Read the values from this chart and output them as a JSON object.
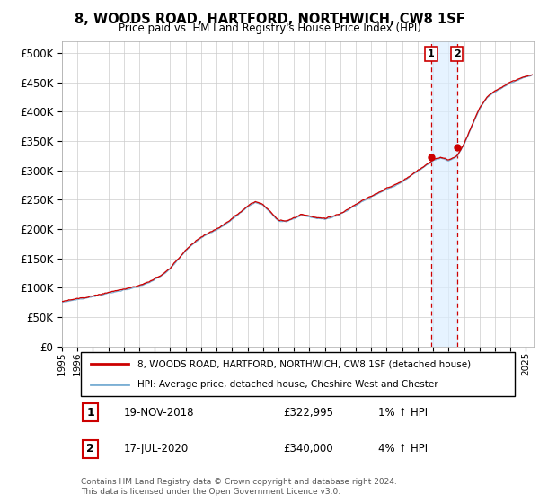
{
  "title": "8, WOODS ROAD, HARTFORD, NORTHWICH, CW8 1SF",
  "subtitle": "Price paid vs. HM Land Registry's House Price Index (HPI)",
  "ylabel_ticks": [
    "£0",
    "£50K",
    "£100K",
    "£150K",
    "£200K",
    "£250K",
    "£300K",
    "£350K",
    "£400K",
    "£450K",
    "£500K"
  ],
  "ytick_values": [
    0,
    50000,
    100000,
    150000,
    200000,
    250000,
    300000,
    350000,
    400000,
    450000,
    500000
  ],
  "ylim": [
    0,
    520000
  ],
  "xlim_start": 1995.0,
  "xlim_end": 2025.5,
  "legend_line1": "8, WOODS ROAD, HARTFORD, NORTHWICH, CW8 1SF (detached house)",
  "legend_line2": "HPI: Average price, detached house, Cheshire West and Chester",
  "transaction1_label": "1",
  "transaction1_date": "19-NOV-2018",
  "transaction1_price": "£322,995",
  "transaction1_hpi": "1% ↑ HPI",
  "transaction1_year": 2018.88,
  "transaction1_value": 322995,
  "transaction2_label": "2",
  "transaction2_date": "17-JUL-2020",
  "transaction2_price": "£340,000",
  "transaction2_hpi": "4% ↑ HPI",
  "transaction2_year": 2020.54,
  "transaction2_value": 340000,
  "hpi_color": "#7bafd4",
  "price_color": "#cc0000",
  "marker_color": "#cc0000",
  "dashed_line_color": "#cc0000",
  "span_color": "#dceeff",
  "background_color": "#ffffff",
  "grid_color": "#cccccc",
  "footer_text": "Contains HM Land Registry data © Crown copyright and database right 2024.\nThis data is licensed under the Open Government Licence v3.0.",
  "xtick_years": [
    1995,
    1996,
    1997,
    1998,
    1999,
    2000,
    2001,
    2002,
    2003,
    2004,
    2005,
    2006,
    2007,
    2008,
    2009,
    2010,
    2011,
    2012,
    2013,
    2014,
    2015,
    2016,
    2017,
    2018,
    2019,
    2020,
    2021,
    2022,
    2023,
    2024,
    2025
  ]
}
